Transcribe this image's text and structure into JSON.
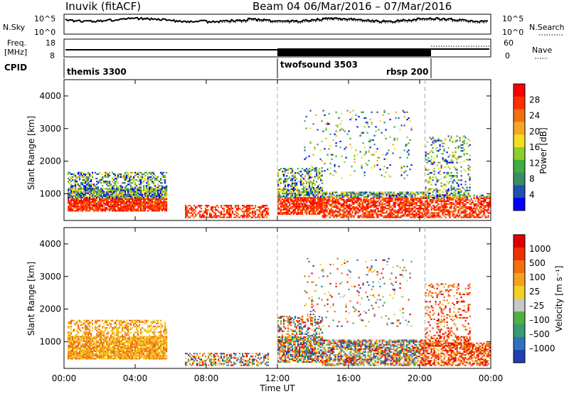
{
  "header": {
    "station_title": "Inuvik (fitACF)",
    "beam_title": "Beam 04  06/Mar/2016 – 07/Mar/2016"
  },
  "noise_panel": {
    "left_label": "N.Sky",
    "left_ticks": [
      "10^5",
      "10^0"
    ],
    "right_ticks": [
      "10^5",
      "10^0"
    ],
    "right_label": "N.Search"
  },
  "freq_panel": {
    "left_label_1": "Freq.",
    "left_label_2": "[MHz]",
    "left_ticks": [
      "18",
      "8"
    ],
    "right_ticks": [
      "60",
      "0"
    ],
    "right_label": "Nave"
  },
  "cpid_panel": {
    "label": "CPID",
    "programs": [
      {
        "name": "themis 3300",
        "start_hour": 0
      },
      {
        "name": "twofsound 3503",
        "start_hour": 12
      },
      {
        "name": "rbsp 200",
        "start_hour": 20.3
      }
    ]
  },
  "colors": {
    "power": [
      "#0000ff",
      "#2050b0",
      "#3a8c66",
      "#3fae3f",
      "#8ccf2f",
      "#f0e020",
      "#f5a623",
      "#f07010",
      "#ff3000",
      "#ff0000"
    ],
    "velocity": [
      "#2040b0",
      "#3070c0",
      "#3a9a70",
      "#50b040",
      "#c8c8c8",
      "#f2d020",
      "#f5a020",
      "#f07010",
      "#f03000",
      "#e00000"
    ]
  },
  "chart_data": [
    {
      "type": "heatmap",
      "panel": "power",
      "ylabel": "Slant Range [km]",
      "ylim": [
        180,
        4500
      ],
      "yticks": [
        "1000",
        "2000",
        "3000",
        "4000"
      ],
      "ytick_values": [
        1000,
        2000,
        3000,
        4000
      ],
      "colorbar_label": "Power [dB]",
      "colorbar_ticks": [
        "4",
        "8",
        "12",
        "16",
        "20",
        "24",
        "28"
      ],
      "colorbar_range": [
        0,
        30
      ]
    },
    {
      "type": "heatmap",
      "panel": "velocity",
      "ylabel": "Slant Range [km]",
      "ylim": [
        180,
        4500
      ],
      "yticks": [
        "1000",
        "2000",
        "3000",
        "4000"
      ],
      "ytick_values": [
        1000,
        2000,
        3000,
        4000
      ],
      "colorbar_label": "Velocity [m s⁻¹]",
      "colorbar_ticks": [
        "1000",
        "500",
        "100",
        "25",
        "–25",
        "–100",
        "–500",
        "–1000"
      ]
    }
  ],
  "x_axis": {
    "label": "Time UT",
    "xlim": [
      0,
      24
    ],
    "ticks": [
      "00:00",
      "04:00",
      "08:00",
      "12:00",
      "16:00",
      "20:00",
      "00:00"
    ],
    "tick_hours": [
      0,
      4,
      8,
      12,
      16,
      20,
      24
    ]
  }
}
